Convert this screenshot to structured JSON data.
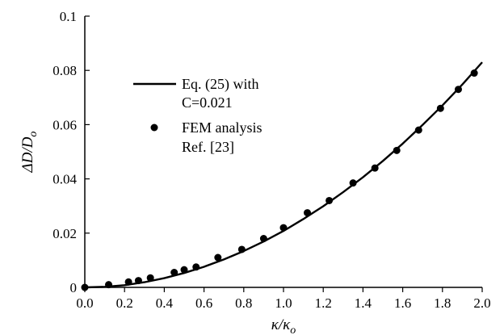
{
  "chart_data": {
    "type": "line",
    "xlabel": {
      "sym": "κ/κ",
      "sub": "o"
    },
    "ylabel": {
      "sym": "ΔD/D",
      "sub": "o"
    },
    "xlim": [
      0,
      2.0
    ],
    "ylim": [
      0,
      0.1
    ],
    "x_ticks": [
      "0.0",
      "0.2",
      "0.4",
      "0.6",
      "0.8",
      "1.0",
      "1.2",
      "1.4",
      "1.6",
      "1.8",
      "2.0"
    ],
    "y_ticks": [
      "0",
      "0.02",
      "0.04",
      "0.06",
      "0.08",
      "0.1"
    ],
    "grid": false,
    "legend_position": "upper-left",
    "series": [
      {
        "name_line1": "Eq. (25) with",
        "name_line2": "C=0.021",
        "style": "line",
        "color": "#000000",
        "x": [
          0,
          0.1,
          0.2,
          0.3,
          0.4,
          0.5,
          0.6,
          0.7,
          0.8,
          0.9,
          1.0,
          1.1,
          1.2,
          1.3,
          1.4,
          1.5,
          1.6,
          1.7,
          1.8,
          1.9,
          2.0
        ],
        "y": [
          0,
          0.0002,
          0.0008,
          0.0019,
          0.0034,
          0.0053,
          0.0076,
          0.0103,
          0.0134,
          0.0169,
          0.0208,
          0.0252,
          0.0299,
          0.0351,
          0.0406,
          0.0466,
          0.053,
          0.0599,
          0.0671,
          0.0748,
          0.083
        ]
      },
      {
        "name_line1": "FEM analysis",
        "name_line2": "Ref. [23]",
        "style": "scatter",
        "color": "#000000",
        "x": [
          0.0,
          0.12,
          0.22,
          0.27,
          0.33,
          0.45,
          0.5,
          0.56,
          0.67,
          0.79,
          0.9,
          1.0,
          1.12,
          1.23,
          1.35,
          1.46,
          1.57,
          1.68,
          1.79,
          1.88,
          1.96
        ],
        "y": [
          0.0,
          0.001,
          0.002,
          0.0025,
          0.0035,
          0.0055,
          0.0065,
          0.0075,
          0.011,
          0.014,
          0.018,
          0.022,
          0.0275,
          0.032,
          0.0385,
          0.044,
          0.0505,
          0.058,
          0.066,
          0.073,
          0.079
        ]
      }
    ]
  }
}
